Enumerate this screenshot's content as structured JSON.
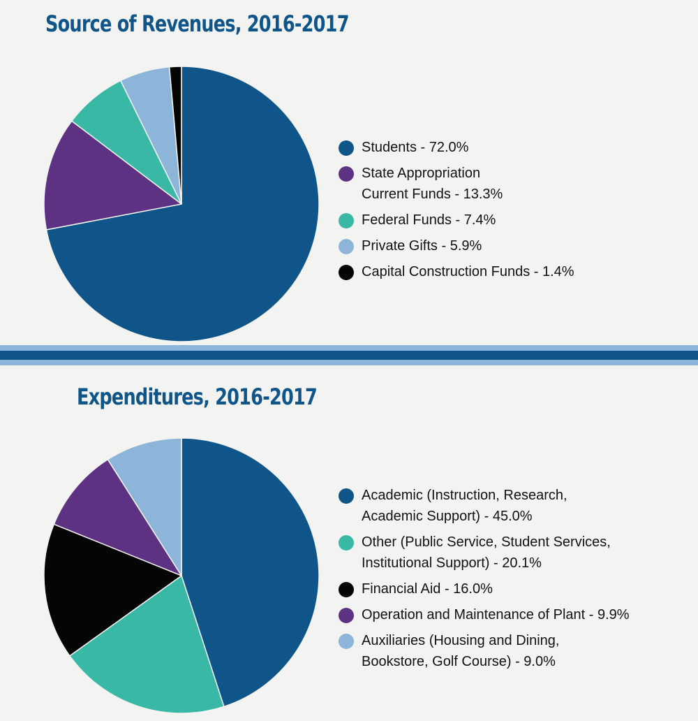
{
  "chart_data": [
    {
      "type": "pie",
      "title": "Source of Revenues, 2016-2017",
      "slices": [
        {
          "label": "Students - 72.0%",
          "value": 72.0,
          "color": "#10558a"
        },
        {
          "label": "State Appropriation\nCurrent Funds - 13.3%",
          "value": 13.3,
          "color": "#5d3282"
        },
        {
          "label": "Federal Funds - 7.4%",
          "value": 7.4,
          "color": "#3ab8a6"
        },
        {
          "label": "Private Gifts - 5.9%",
          "value": 5.9,
          "color": "#8db4d9"
        },
        {
          "label": "Capital Construction Funds - 1.4%",
          "value": 1.4,
          "color": "#050505"
        }
      ]
    },
    {
      "type": "pie",
      "title": "Expenditures, 2016-2017",
      "slices": [
        {
          "label": "Academic (Instruction, Research,\nAcademic Support) - 45.0%",
          "value": 45.0,
          "color": "#10558a"
        },
        {
          "label": "Other (Public Service, Student Services,\nInstitutional Support) - 20.1%",
          "value": 20.1,
          "color": "#3ab8a6"
        },
        {
          "label": "Financial Aid - 16.0%",
          "value": 16.0,
          "color": "#050505"
        },
        {
          "label": "Operation and Maintenance of Plant - 9.9%",
          "value": 9.9,
          "color": "#5d3282"
        },
        {
          "label": "Auxiliaries (Housing and Dining,\nBookstore, Golf Course) - 9.0%",
          "value": 9.0,
          "color": "#8db4d9"
        }
      ]
    }
  ]
}
